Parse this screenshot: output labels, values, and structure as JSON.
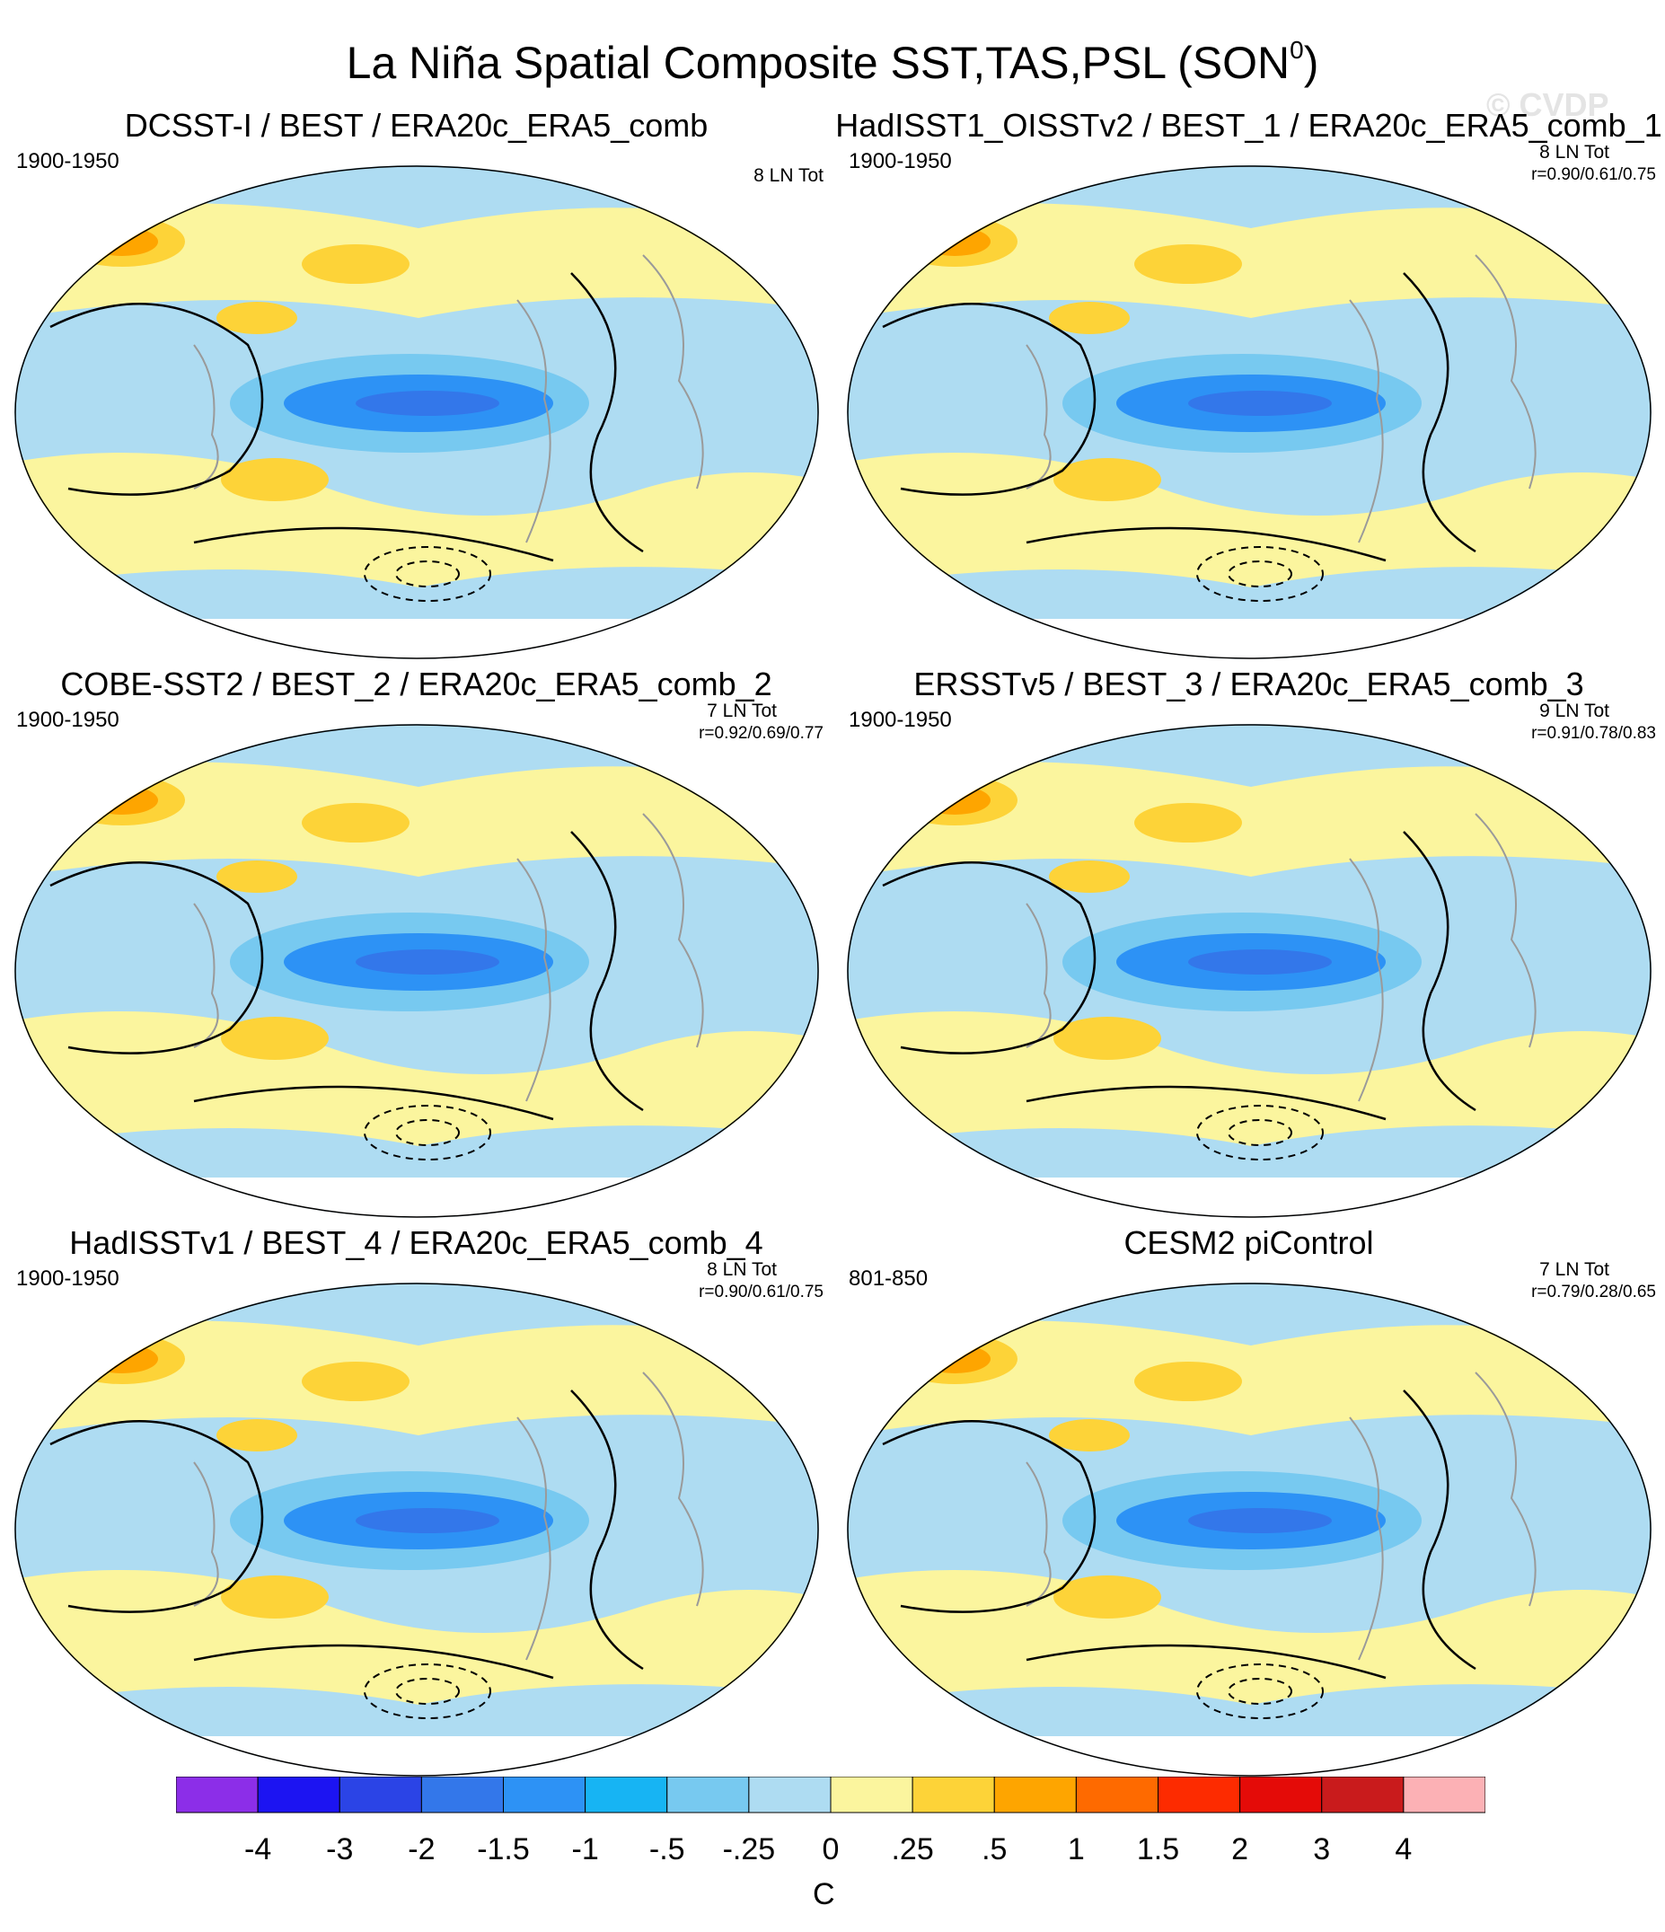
{
  "title": "La Niña Spatial Composite SST,TAS,PSL (SON",
  "title_sup": "0",
  "title_end": ")",
  "watermark": "© CVDP",
  "panels": [
    {
      "title": "DCSST-I / BEST / ERA20c_ERA5_comb",
      "period": "1900-1950",
      "count": "8 LN Tot",
      "corr": ""
    },
    {
      "title": "HadISST1_OISSTv2 / BEST_1 / ERA20c_ERA5_comb_1",
      "period": "1900-1950",
      "count": "8 LN Tot",
      "corr": "r=0.90/0.61/0.75"
    },
    {
      "title": "COBE-SST2 / BEST_2 / ERA20c_ERA5_comb_2",
      "period": "1900-1950",
      "count": "7 LN Tot",
      "corr": "r=0.92/0.69/0.77"
    },
    {
      "title": "ERSSTv5 / BEST_3 / ERA20c_ERA5_comb_3",
      "period": "1900-1950",
      "count": "9 LN Tot",
      "corr": "r=0.91/0.78/0.83"
    },
    {
      "title": "HadISSTv1 / BEST_4 / ERA20c_ERA5_comb_4",
      "period": "1900-1950",
      "count": "8 LN Tot",
      "corr": "r=0.90/0.61/0.75"
    },
    {
      "title": "CESM2 piControl",
      "period": "801-850",
      "count": "7 LN Tot",
      "corr": "r=0.79/0.28/0.65"
    }
  ],
  "colorbar": {
    "colors": [
      "#8c2ee8",
      "#1c14f2",
      "#2b44e6",
      "#3377ea",
      "#2d92f5",
      "#17b4f3",
      "#77c9f0",
      "#aedcf2",
      "#fbf59e",
      "#fdd338",
      "#fea500",
      "#fe6a00",
      "#fd2b00",
      "#e40b08",
      "#c91b1c",
      "#fcb1b5"
    ],
    "labels": [
      "-4",
      "-3",
      "-2",
      "-1.5",
      "-1",
      "-.5",
      "-.25",
      "0",
      ".25",
      ".5",
      "1",
      "1.5",
      "2",
      "3",
      "4"
    ],
    "unit": "C"
  }
}
